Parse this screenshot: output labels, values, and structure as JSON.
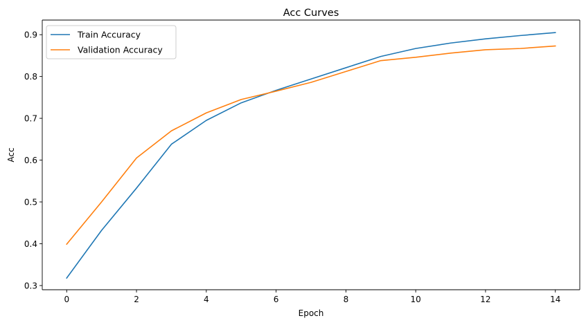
{
  "chart_data": {
    "type": "line",
    "title": "Acc Curves",
    "xlabel": "Epoch",
    "ylabel": "Acc",
    "x": [
      0,
      1,
      2,
      3,
      4,
      5,
      6,
      7,
      8,
      9,
      10,
      11,
      12,
      13,
      14
    ],
    "xlim": [
      -0.7,
      14.7
    ],
    "ylim": [
      0.29,
      0.935
    ],
    "xticks": [
      0,
      2,
      4,
      6,
      8,
      10,
      12,
      14
    ],
    "yticks": [
      0.3,
      0.4,
      0.5,
      0.6,
      0.7,
      0.8,
      0.9
    ],
    "xtick_labels": [
      "0",
      "2",
      "4",
      "6",
      "8",
      "10",
      "12",
      "14"
    ],
    "ytick_labels": [
      "0.3",
      "0.4",
      "0.5",
      "0.6",
      "0.7",
      "0.8",
      "0.9"
    ],
    "grid": false,
    "legend_position": "top-left",
    "series": [
      {
        "name": "Train Accuracy",
        "color": "#1f77b4",
        "values": [
          0.318,
          0.432,
          0.533,
          0.638,
          0.695,
          0.737,
          0.767,
          0.794,
          0.821,
          0.848,
          0.867,
          0.88,
          0.89,
          0.898,
          0.905
        ]
      },
      {
        "name": "Validation Accuracy",
        "color": "#ff7f0e",
        "values": [
          0.399,
          0.5,
          0.605,
          0.67,
          0.713,
          0.745,
          0.765,
          0.786,
          0.812,
          0.838,
          0.846,
          0.856,
          0.864,
          0.867,
          0.873
        ]
      }
    ]
  }
}
